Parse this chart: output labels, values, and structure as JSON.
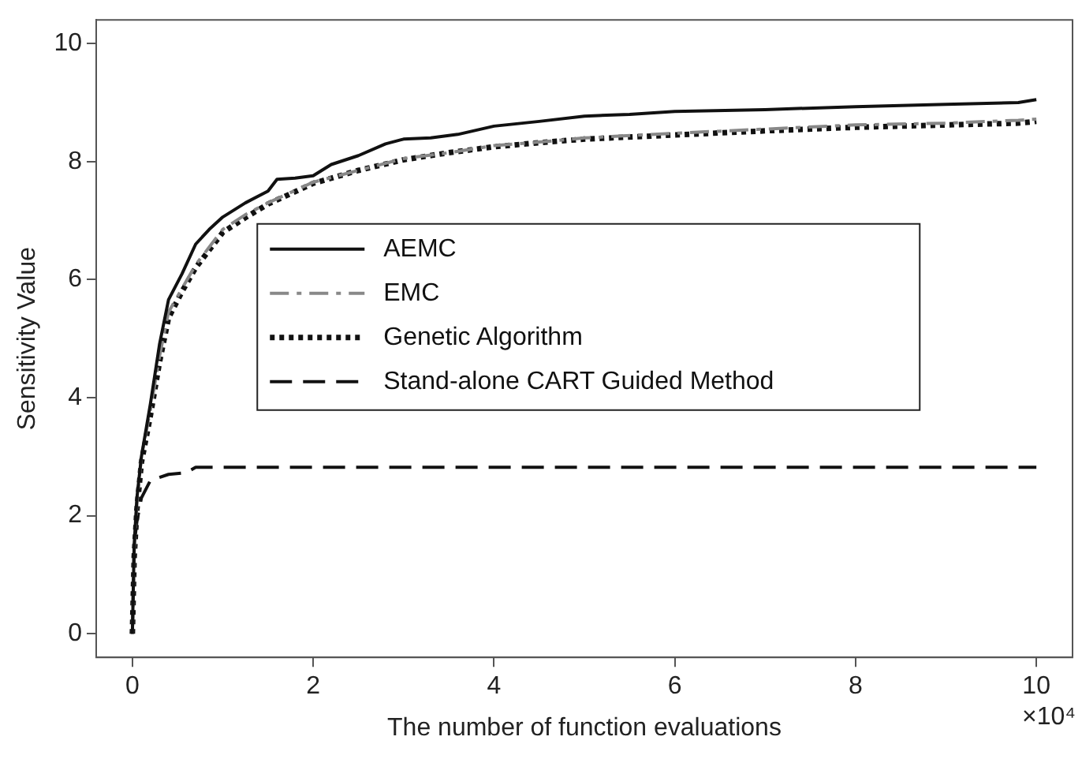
{
  "chart_data": {
    "type": "line",
    "xlabel": "The number of function evaluations",
    "ylabel": "Sensitivity Value",
    "annotations": [
      "×10⁴"
    ],
    "xlim": [
      -0.4,
      10.4
    ],
    "xticks": [
      0,
      2,
      4,
      6,
      8,
      10
    ],
    "ylim": [
      -0.4,
      10.4
    ],
    "yticks": [
      0,
      2,
      4,
      6,
      8,
      10
    ],
    "grid": false,
    "legend": "left",
    "marker": "none",
    "series": [
      {
        "name": "AEMC",
        "color": "#111111",
        "line_style": "solid",
        "x": [
          0,
          0.02,
          0.05,
          0.1,
          0.2,
          0.3,
          0.4,
          0.55,
          0.7,
          0.85,
          1,
          1.25,
          1.5,
          1.6,
          1.8,
          2,
          2.2,
          2.5,
          2.8,
          3,
          3.3,
          3.6,
          4,
          4.5,
          5,
          5.5,
          6,
          7,
          8,
          9,
          9.8,
          10
        ],
        "values": [
          0,
          1.5,
          2.3,
          3,
          3.9,
          4.9,
          5.66,
          6.1,
          6.6,
          6.85,
          7.06,
          7.3,
          7.5,
          7.7,
          7.72,
          7.76,
          7.95,
          8.1,
          8.3,
          8.38,
          8.4,
          8.46,
          8.6,
          8.68,
          8.77,
          8.8,
          8.85,
          8.88,
          8.93,
          8.97,
          9,
          9.05
        ]
      },
      {
        "name": "EMC",
        "color": "#888888",
        "line_style": "dashdot",
        "x": [
          0,
          0.02,
          0.05,
          0.1,
          0.2,
          0.3,
          0.4,
          0.55,
          0.7,
          0.85,
          1,
          1.25,
          1.5,
          2,
          2.5,
          3,
          3.5,
          4,
          4.5,
          5,
          6,
          7,
          8,
          9,
          9.8,
          10
        ],
        "values": [
          0,
          1.4,
          2.2,
          3,
          3.8,
          4.7,
          5.45,
          5.85,
          6.25,
          6.55,
          6.85,
          7.1,
          7.3,
          7.65,
          7.85,
          8.05,
          8.15,
          8.27,
          8.33,
          8.4,
          8.48,
          8.55,
          8.62,
          8.65,
          8.7,
          8.72
        ]
      },
      {
        "name": "Genetic Algorithm",
        "color": "#111111",
        "line_style": "dotted",
        "x": [
          0,
          0.02,
          0.05,
          0.1,
          0.2,
          0.3,
          0.4,
          0.55,
          0.7,
          0.85,
          1,
          1.25,
          1.5,
          2,
          2.5,
          3,
          3.5,
          4,
          4.5,
          5,
          6,
          7,
          8,
          9,
          9.8,
          10
        ],
        "values": [
          0,
          1.3,
          2.1,
          2.9,
          3.7,
          4.6,
          5.35,
          5.8,
          6.2,
          6.5,
          6.8,
          7.05,
          7.28,
          7.63,
          7.85,
          8.03,
          8.15,
          8.25,
          8.32,
          8.38,
          8.45,
          8.52,
          8.58,
          8.62,
          8.65,
          8.68
        ]
      },
      {
        "name": "Stand-alone CART Guided Method",
        "color": "#111111",
        "line_style": "dashed",
        "x": [
          0,
          0.02,
          0.05,
          0.1,
          0.2,
          0.4,
          0.6,
          0.7,
          10
        ],
        "values": [
          0,
          1.5,
          1.9,
          2.3,
          2.6,
          2.7,
          2.73,
          2.82,
          2.82
        ]
      }
    ]
  }
}
